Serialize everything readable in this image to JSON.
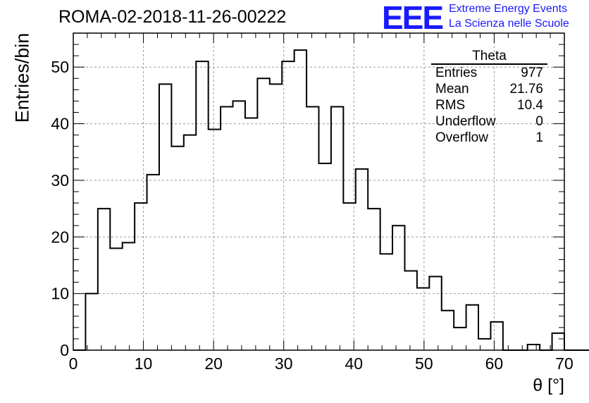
{
  "header": {
    "title": "ROMA-02-2018-11-26-00222",
    "logo": "EEE",
    "logo_line1": "Extreme Energy Events",
    "logo_line2": "La Scienza nelle Scuole"
  },
  "stats": {
    "title": "Theta",
    "rows": [
      {
        "label": "Entries",
        "value": "977"
      },
      {
        "label": "Mean",
        "value": "21.76"
      },
      {
        "label": "RMS",
        "value": "10.4"
      },
      {
        "label": "Underflow",
        "value": "0"
      },
      {
        "label": "Overflow",
        "value": "1"
      }
    ]
  },
  "chart_data": {
    "type": "bar",
    "style": "step-histogram",
    "title": "ROMA-02-2018-11-26-00222",
    "xlabel": "θ [°]",
    "ylabel": "Entries/bin",
    "xlim": [
      0,
      70
    ],
    "ylim": [
      0,
      56
    ],
    "grid": true,
    "bin_width": 1.75,
    "x_ticks": [
      "0",
      "10",
      "20",
      "30",
      "40",
      "50",
      "60",
      "70"
    ],
    "y_ticks": [
      "0",
      "10",
      "20",
      "30",
      "40",
      "50"
    ],
    "bin_edges_start": 0,
    "values": [
      0,
      10,
      25,
      18,
      19,
      26,
      31,
      47,
      36,
      38,
      51,
      39,
      43,
      44,
      41,
      48,
      47,
      51,
      53,
      43,
      33,
      43,
      26,
      32,
      25,
      17,
      22,
      14,
      11,
      13,
      7,
      4,
      8,
      2,
      5,
      0,
      0,
      1,
      0,
      3,
      0,
      0,
      0,
      0,
      0,
      0,
      0,
      0,
      0,
      0
    ],
    "line_color": "#000000",
    "grid_color": "#999999"
  }
}
